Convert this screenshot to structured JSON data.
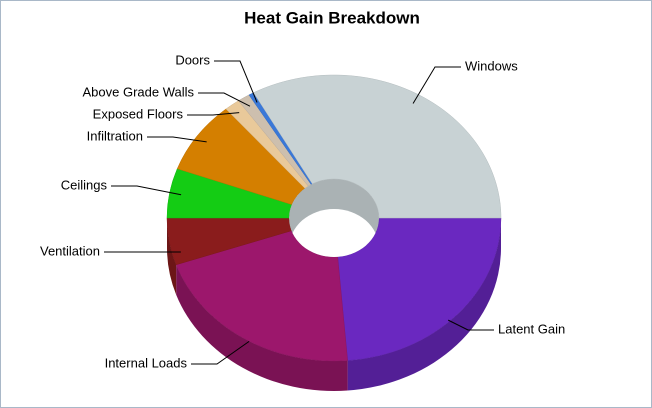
{
  "chart_data": {
    "type": "pie",
    "title": "Heat Gain Breakdown",
    "categories": [
      "Latent Gain",
      "Internal Loads",
      "Ventilation",
      "Ceilings",
      "Infiltration",
      "Exposed Floors",
      "Above Grade Walls",
      "Doors",
      "Windows"
    ],
    "values": [
      23.7,
      21,
      5.3,
      5.6,
      8.2,
      1.5,
      1.2,
      0.5,
      33
    ],
    "colors": [
      "#6a28c0",
      "#9c176c",
      "#8a1c1c",
      "#14cc14",
      "#d47f00",
      "#e9c99a",
      "#cdbfae",
      "#3a78d8",
      "#c8d2d4"
    ]
  }
}
